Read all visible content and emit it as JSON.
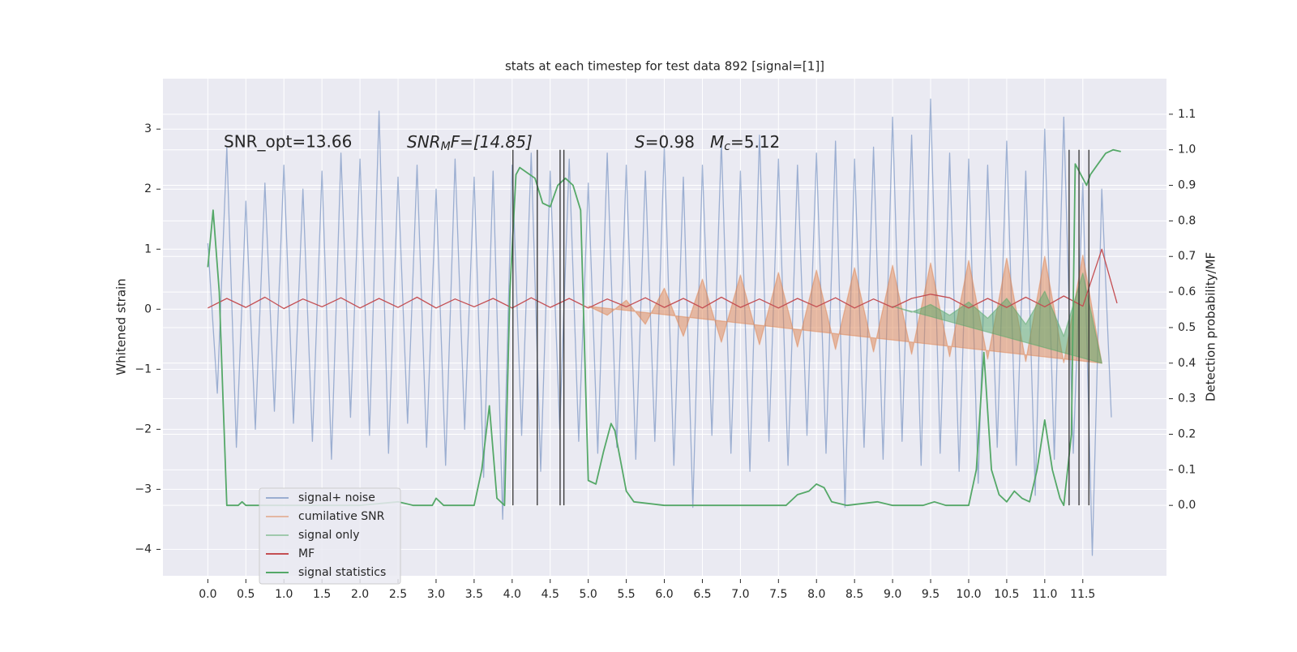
{
  "chart_data": {
    "type": "line",
    "title": "stats at each timestep for test data 892 [signal=[1]]",
    "ylabel": "Whitened strain",
    "y2label": "Detection probability/MF",
    "annotations": [
      {
        "text": "SNR_opt=13.66"
      },
      {
        "text": "SNR",
        "sub": "M",
        "rest": "F=[14.85]"
      },
      {
        "text": "S",
        "rest": "=0.98"
      },
      {
        "text": "M",
        "sub": "c",
        "rest": "=5.12"
      }
    ],
    "xlim": [
      -0.59,
      12.6
    ],
    "ylim": [
      -4.44,
      3.84
    ],
    "y2lim": [
      -0.198,
      1.2
    ],
    "xticks": [
      {
        "value": 0,
        "label": "0.0"
      },
      {
        "value": 0.5,
        "label": "0.5"
      },
      {
        "value": 1,
        "label": "1.0"
      },
      {
        "value": 1.5,
        "label": "1.5"
      },
      {
        "value": 2,
        "label": "2.0"
      },
      {
        "value": 2.5,
        "label": "2.5"
      },
      {
        "value": 3,
        "label": "3.0"
      },
      {
        "value": 3.5,
        "label": "3.5"
      },
      {
        "value": 4,
        "label": "4.0"
      },
      {
        "value": 4.5,
        "label": "4.5"
      },
      {
        "value": 5,
        "label": "5.0"
      },
      {
        "value": 5.5,
        "label": "5.5"
      },
      {
        "value": 6,
        "label": "6.0"
      },
      {
        "value": 6.5,
        "label": "6.5"
      },
      {
        "value": 7,
        "label": "7.0"
      },
      {
        "value": 7.5,
        "label": "7.5"
      },
      {
        "value": 8,
        "label": "8.0"
      },
      {
        "value": 8.5,
        "label": "8.5"
      },
      {
        "value": 9,
        "label": "9.0"
      },
      {
        "value": 9.5,
        "label": "9.5"
      },
      {
        "value": 10,
        "label": "10.0"
      },
      {
        "value": 10.5,
        "label": "10.5"
      },
      {
        "value": 11,
        "label": "11.0"
      },
      {
        "value": 11.5,
        "label": "11.5"
      }
    ],
    "yticks": [
      {
        "value": -4,
        "label": "−4"
      },
      {
        "value": -3,
        "label": "−3"
      },
      {
        "value": -2,
        "label": "−2"
      },
      {
        "value": -1,
        "label": "−1"
      },
      0,
      1,
      2,
      3
    ],
    "y2ticks": [
      {
        "value": 0,
        "label": "0.0"
      },
      {
        "value": 0.1,
        "label": "0.1"
      },
      {
        "value": 0.2,
        "label": "0.2"
      },
      {
        "value": 0.3,
        "label": "0.3"
      },
      {
        "value": 0.4,
        "label": "0.4"
      },
      {
        "value": 0.5,
        "label": "0.5"
      },
      {
        "value": 0.6,
        "label": "0.6"
      },
      {
        "value": 0.7,
        "label": "0.7"
      },
      {
        "value": 0.8,
        "label": "0.8"
      },
      {
        "value": 0.9,
        "label": "0.9"
      },
      {
        "value": 1.0,
        "label": "1.0"
      },
      {
        "value": 1.1,
        "label": "1.1"
      }
    ],
    "grid": true,
    "series": [
      {
        "name": "signal+ noise",
        "color": "#4c72b0",
        "opacity": 0.5,
        "fill": false,
        "x": [
          0,
          0.125,
          0.25,
          0.375,
          0.5,
          0.625,
          0.75,
          0.875,
          1,
          1.125,
          1.25,
          1.375,
          1.5,
          1.625,
          1.75,
          1.875,
          2,
          2.125,
          2.25,
          2.375,
          2.5,
          2.625,
          2.75,
          2.875,
          3,
          3.125,
          3.25,
          3.375,
          3.5,
          3.625,
          3.75,
          3.875,
          4,
          4.125,
          4.25,
          4.375,
          4.5,
          4.625,
          4.75,
          4.875,
          5,
          5.125,
          5.25,
          5.375,
          5.5,
          5.625,
          5.75,
          5.875,
          6,
          6.125,
          6.25,
          6.375,
          6.5,
          6.625,
          6.75,
          6.875,
          7,
          7.125,
          7.25,
          7.375,
          7.5,
          7.625,
          7.75,
          7.875,
          8,
          8.125,
          8.25,
          8.375,
          8.5,
          8.625,
          8.75,
          8.875,
          9,
          9.125,
          9.25,
          9.375,
          9.5,
          9.625,
          9.75,
          9.875,
          10,
          10.125,
          10.25,
          10.375,
          10.5,
          10.625,
          10.75,
          10.875,
          11,
          11.125,
          11.25,
          11.375,
          11.5,
          11.625,
          11.75,
          11.875
        ],
        "values": [
          1.1,
          -1.4,
          2.7,
          -2.3,
          1.8,
          -2.0,
          2.1,
          -1.7,
          2.4,
          -1.9,
          2.0,
          -2.2,
          2.3,
          -2.5,
          2.6,
          -1.8,
          2.5,
          -2.1,
          3.3,
          -2.4,
          2.2,
          -1.9,
          2.4,
          -2.3,
          2.0,
          -2.6,
          2.5,
          -2.0,
          2.2,
          -2.8,
          2.3,
          -3.5,
          2.4,
          -2.1,
          2.6,
          -2.7,
          2.3,
          -2.0,
          2.5,
          -2.2,
          2.1,
          -2.4,
          2.6,
          -2.3,
          2.4,
          -2.5,
          2.3,
          -2.2,
          2.7,
          -2.6,
          2.2,
          -3.3,
          2.4,
          -2.1,
          2.8,
          -2.4,
          2.3,
          -2.7,
          2.9,
          -2.2,
          2.5,
          -2.6,
          2.4,
          -2.1,
          2.6,
          -2.4,
          2.8,
          -3.3,
          2.5,
          -2.3,
          2.7,
          -2.5,
          3.2,
          -2.2,
          2.9,
          -2.6,
          3.5,
          -2.4,
          2.6,
          -2.7,
          2.5,
          -2.9,
          2.4,
          -2.3,
          2.8,
          -2.6,
          2.3,
          -3.1,
          3.0,
          -2.5,
          3.2,
          -2.4,
          2.1,
          -4.1,
          2.0,
          -1.8
        ]
      },
      {
        "name": "cumilative SNR",
        "color": "#dd8452",
        "opacity": 0.5,
        "fill": true,
        "x": [
          5,
          5.25,
          5.5,
          5.75,
          6,
          6.25,
          6.5,
          6.75,
          7,
          7.25,
          7.5,
          7.75,
          8,
          8.25,
          8.5,
          8.75,
          9,
          9.25,
          9.5,
          9.75,
          10,
          10.25,
          10.5,
          10.75,
          11,
          11.25,
          11.5,
          11.75
        ],
        "values": [
          0.05,
          -0.1,
          0.15,
          -0.25,
          0.35,
          -0.45,
          0.5,
          -0.55,
          0.57,
          -0.59,
          0.61,
          -0.63,
          0.65,
          -0.67,
          0.69,
          -0.71,
          0.73,
          -0.75,
          0.77,
          -0.79,
          0.81,
          -0.83,
          0.85,
          -0.87,
          0.88,
          -0.89,
          0.9,
          -0.9
        ]
      },
      {
        "name": "signal only",
        "color": "#55a868",
        "opacity": 0.5,
        "fill": true,
        "x": [
          9,
          9.25,
          9.5,
          9.75,
          10,
          10.25,
          10.5,
          10.75,
          11,
          11.25,
          11.5,
          11.75
        ],
        "values": [
          0.05,
          -0.05,
          0.08,
          -0.1,
          0.12,
          -0.15,
          0.18,
          -0.25,
          0.3,
          -0.45,
          0.6,
          -0.9
        ]
      },
      {
        "name": "MF",
        "color": "#c44e52",
        "opacity": 1,
        "fill": false,
        "x": [
          0,
          0.25,
          0.5,
          0.75,
          1,
          1.25,
          1.5,
          1.75,
          2,
          2.25,
          2.5,
          2.75,
          3,
          3.25,
          3.5,
          3.75,
          4,
          4.25,
          4.5,
          4.75,
          5,
          5.25,
          5.5,
          5.75,
          6,
          6.25,
          6.5,
          6.75,
          7,
          7.25,
          7.5,
          7.75,
          8,
          8.25,
          8.5,
          8.75,
          9,
          9.25,
          9.5,
          9.75,
          10,
          10.25,
          10.5,
          10.75,
          11,
          11.25,
          11.5,
          11.75,
          11.95
        ],
        "values": [
          0.02,
          0.18,
          0.03,
          0.2,
          0.01,
          0.17,
          0.04,
          0.19,
          0.02,
          0.18,
          0.03,
          0.2,
          0.02,
          0.17,
          0.04,
          0.18,
          0.02,
          0.19,
          0.03,
          0.18,
          0.02,
          0.17,
          0.04,
          0.19,
          0.03,
          0.18,
          0.02,
          0.2,
          0.03,
          0.17,
          0.02,
          0.18,
          0.04,
          0.19,
          0.02,
          0.17,
          0.03,
          0.18,
          0.25,
          0.19,
          0.02,
          0.18,
          0.03,
          0.2,
          0.04,
          0.22,
          0.05,
          1.0,
          0.1
        ]
      },
      {
        "name": "signal statistics",
        "color": "#55a868",
        "opacity": 1,
        "fill": false,
        "axis": "y2",
        "x": [
          0,
          0.07,
          0.15,
          0.2,
          0.25,
          0.4,
          0.45,
          0.5,
          1,
          2,
          2.5,
          2.7,
          2.95,
          3,
          3.1,
          3.5,
          3.6,
          3.7,
          3.8,
          3.9,
          3.97,
          4.05,
          4.1,
          4.3,
          4.4,
          4.5,
          4.6,
          4.7,
          4.8,
          4.9,
          5,
          5.1,
          5.2,
          5.3,
          5.35,
          5.5,
          5.6,
          6,
          7.6,
          7.75,
          7.9,
          8,
          8.1,
          8.2,
          8.4,
          8.8,
          9,
          9.4,
          9.55,
          9.7,
          10,
          10.1,
          10.2,
          10.3,
          10.4,
          10.5,
          10.6,
          10.7,
          10.8,
          10.9,
          11,
          11.1,
          11.2,
          11.25,
          11.35,
          11.4,
          11.55,
          11.6,
          11.7,
          11.8,
          11.9,
          12
        ],
        "values": [
          0.67,
          0.83,
          0.6,
          0.3,
          0.0,
          0.0,
          0.01,
          0.0,
          0.0,
          0.0,
          0.01,
          0.0,
          0.0,
          0.02,
          0.0,
          0.0,
          0.1,
          0.28,
          0.02,
          0.0,
          0.6,
          0.93,
          0.95,
          0.92,
          0.85,
          0.84,
          0.9,
          0.92,
          0.9,
          0.83,
          0.07,
          0.06,
          0.15,
          0.23,
          0.21,
          0.04,
          0.01,
          0.0,
          0.0,
          0.03,
          0.04,
          0.06,
          0.05,
          0.01,
          0.0,
          0.01,
          0.0,
          0.0,
          0.01,
          0.0,
          0.0,
          0.1,
          0.43,
          0.1,
          0.03,
          0.01,
          0.04,
          0.02,
          0.01,
          0.1,
          0.24,
          0.1,
          0.02,
          0.0,
          0.2,
          0.96,
          0.9,
          0.93,
          0.96,
          0.99,
          1.0,
          0.995
        ]
      }
    ],
    "vlines": {
      "x": [
        4.01,
        4.33,
        4.63,
        4.68,
        11.32,
        11.45,
        11.58
      ],
      "ymin": 0,
      "ymax": 1.0,
      "color": "#333333"
    }
  }
}
